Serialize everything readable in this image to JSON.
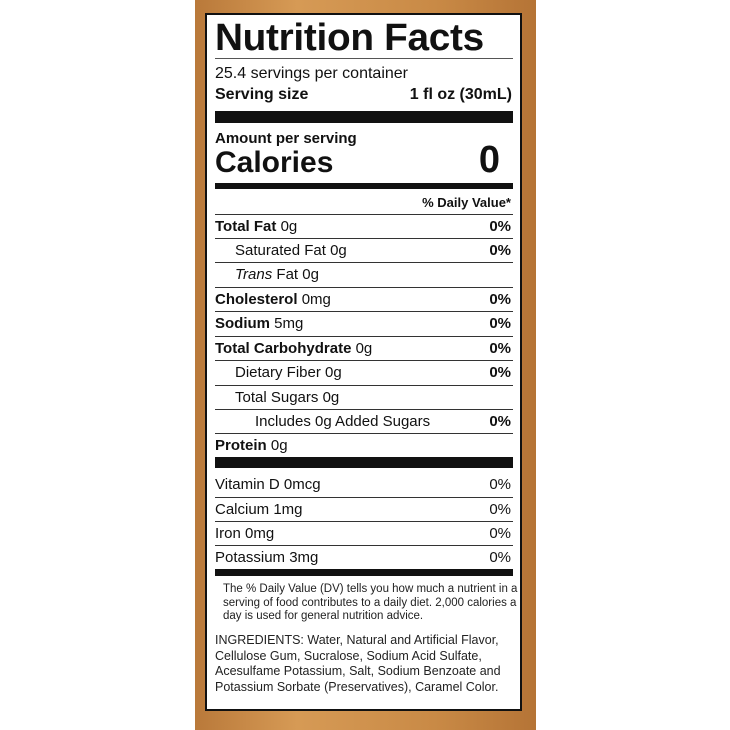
{
  "label": {
    "title": "Nutrition Facts",
    "servings_per_container": "25.4 servings per container",
    "serving_size_label": "Serving size",
    "serving_size_value": "1 fl oz (30mL)",
    "amount_per_serving": "Amount per serving",
    "calories_label": "Calories",
    "calories_value": "0",
    "daily_value_header": "% Daily Value*",
    "nutrients": [
      {
        "name": "Total Fat",
        "amount": "0g",
        "dv": "0%"
      },
      {
        "name": "Saturated Fat",
        "amount": "0g",
        "dv": "0%"
      },
      {
        "name": "Trans",
        "name2": "Fat",
        "amount": "0g",
        "dv": ""
      },
      {
        "name": "Cholesterol",
        "amount": "0mg",
        "dv": "0%"
      },
      {
        "name": "Sodium",
        "amount": "5mg",
        "dv": "0%"
      },
      {
        "name": "Total Carbohydrate",
        "amount": "0g",
        "dv": "0%"
      },
      {
        "name": "Dietary Fiber",
        "amount": "0g",
        "dv": "0%"
      },
      {
        "name": "Total Sugars",
        "amount": "0g",
        "dv": ""
      },
      {
        "name": "Includes 0g Added Sugars",
        "amount": "",
        "dv": "0%"
      },
      {
        "name": "Protein",
        "amount": "0g",
        "dv": ""
      }
    ],
    "vitamins": [
      {
        "name": "Vitamin D 0mcg",
        "dv": "0%"
      },
      {
        "name": "Calcium 1mg",
        "dv": "0%"
      },
      {
        "name": "Iron 0mg",
        "dv": "0%"
      },
      {
        "name": "Potassium 3mg",
        "dv": "0%"
      }
    ],
    "footnote": "The % Daily Value (DV) tells you how much a nutrient in a serving of food contributes to a daily diet. 2,000 calories a day is used for general nutrition advice.",
    "ingredients": "INGREDIENTS: Water, Natural and Artificial Flavor, Cellulose Gum, Sucralose, Sodium Acid Sulfate, Acesulfame Potassium, Salt, Sodium Benzoate and Potassium Sorbate (Preservatives), Caramel Color."
  },
  "colors": {
    "band": "#c98a46",
    "panel": "#ffffff",
    "ink": "#111111"
  }
}
